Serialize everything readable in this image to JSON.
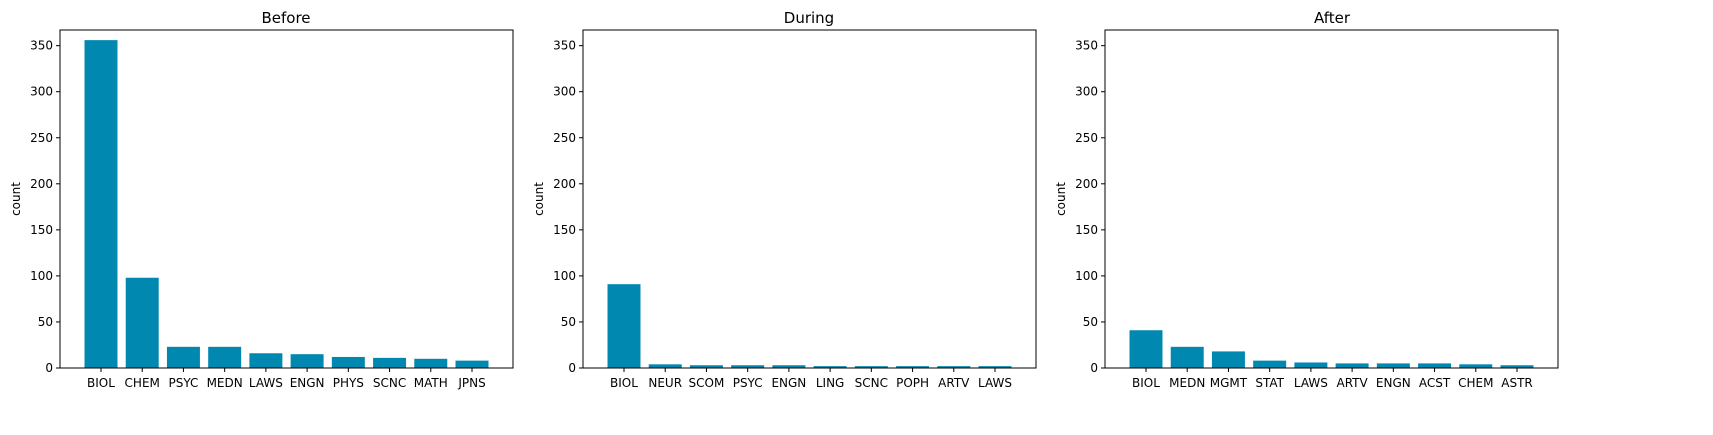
{
  "chart_data": [
    {
      "type": "bar",
      "title": "Before",
      "ylabel": "count",
      "xlabel": "",
      "ylim": [
        0,
        367
      ],
      "yticks": [
        0,
        50,
        100,
        150,
        200,
        250,
        300,
        350
      ],
      "categories": [
        "BIOL",
        "CHEM",
        "PSYC",
        "MEDN",
        "LAWS",
        "ENGN",
        "PHYS",
        "SCNC",
        "MATH",
        "JPNS"
      ],
      "values": [
        356,
        98,
        23,
        23,
        16,
        15,
        12,
        11,
        10,
        8
      ],
      "color": "#0088b0",
      "grid": false
    },
    {
      "type": "bar",
      "title": "During",
      "ylabel": "count",
      "xlabel": "",
      "ylim": [
        0,
        367
      ],
      "yticks": [
        0,
        50,
        100,
        150,
        200,
        250,
        300,
        350
      ],
      "categories": [
        "BIOL",
        "NEUR",
        "SCOM",
        "PSYC",
        "ENGN",
        "LING",
        "SCNC",
        "POPH",
        "ARTV",
        "LAWS"
      ],
      "values": [
        91,
        4,
        3,
        3,
        3,
        2,
        2,
        2,
        2,
        2
      ],
      "color": "#0088b0",
      "grid": false
    },
    {
      "type": "bar",
      "title": "After",
      "ylabel": "count",
      "xlabel": "",
      "ylim": [
        0,
        367
      ],
      "yticks": [
        0,
        50,
        100,
        150,
        200,
        250,
        300,
        350
      ],
      "categories": [
        "BIOL",
        "MEDN",
        "MGMT",
        "STAT",
        "LAWS",
        "ARTV",
        "ENGN",
        "ACST",
        "CHEM",
        "ASTR"
      ],
      "values": [
        41,
        23,
        18,
        8,
        6,
        5,
        5,
        5,
        4,
        3
      ],
      "color": "#0088b0",
      "grid": false
    }
  ]
}
